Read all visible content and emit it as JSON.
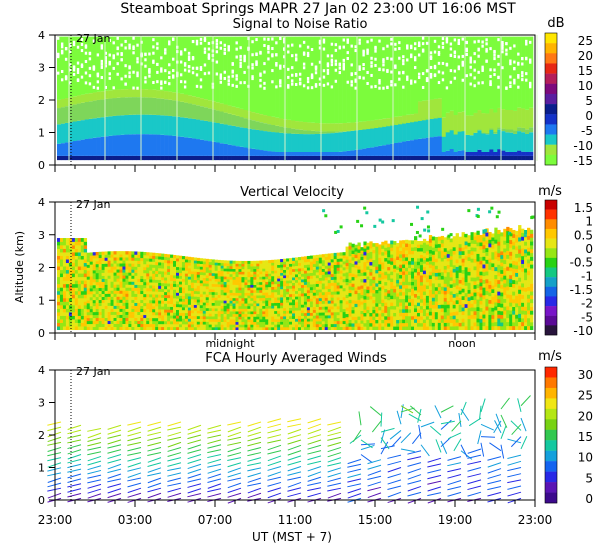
{
  "header": {
    "title": "Steamboat Springs  MAPR 27 Jan 02  23:00 UT  16:06  MST"
  },
  "colors": {
    "snr_scale": [
      "#7cfc3c",
      "#a0e63c",
      "#19c8c8",
      "#1e78f0",
      "#1432c8",
      "#0a1e8c",
      "#5a1ea0",
      "#7d0a7d",
      "#b41e5a",
      "#e62814",
      "#ff7814",
      "#ffb400",
      "#ffe600"
    ],
    "vel_scale": [
      "#28143c",
      "#5a0a96",
      "#7814c8",
      "#2828e6",
      "#1464e6",
      "#14a0c8",
      "#14c882",
      "#28d214",
      "#96e614",
      "#e6e614",
      "#ffc800",
      "#ff8c00",
      "#ff3200",
      "#c80000"
    ],
    "wind_scale": [
      "#3c0a8c",
      "#5a14b4",
      "#2828e6",
      "#1464f0",
      "#14a0dc",
      "#14c8a0",
      "#32c850",
      "#78d214",
      "#b4e614",
      "#f0e614",
      "#ffb400",
      "#ff7800",
      "#ff2800"
    ]
  },
  "chart_data": [
    {
      "type": "heatmap",
      "name": "snr",
      "title": "Signal to Noise Ratio",
      "ylabel": "",
      "ylim": [
        0,
        4
      ],
      "yticks": [
        "0",
        "1",
        "2",
        "3",
        "4"
      ],
      "date_marker": "27 Jan",
      "unit": "dB",
      "colorbar_ticks": [
        "25",
        "20",
        "15",
        "10",
        "5",
        "0",
        "-5",
        "-10",
        "-15"
      ],
      "layers": [
        {
          "from_km": 0.15,
          "to_km": 0.3,
          "color": "#0a1e8c"
        },
        {
          "from_km": 0.3,
          "to_km": 0.8,
          "color": "#1e78f0"
        },
        {
          "from_km": 0.8,
          "to_km": 1.4,
          "color": "#19c8c8"
        },
        {
          "from_km": 1.4,
          "to_km": 2.0,
          "color": "#a0e63c"
        },
        {
          "from_km": 2.0,
          "to_km": 4.0,
          "color": "#7cfc3c"
        }
      ]
    },
    {
      "type": "heatmap",
      "name": "velocity",
      "title": "Vertical Velocity",
      "ylabel": "Altitude (km)",
      "ylim": [
        0,
        4
      ],
      "yticks": [
        "0",
        "1",
        "2",
        "3",
        "4"
      ],
      "date_marker": "27 Jan",
      "unit": "m/s",
      "colorbar_ticks": [
        "1.5",
        "1",
        "0.5",
        "0",
        "-0.5",
        "-1",
        "-1.5",
        "-2",
        "-5",
        "-10"
      ],
      "time_labels": [
        "midnight",
        "noon"
      ]
    },
    {
      "type": "scatter",
      "name": "winds",
      "title": "FCA Hourly Averaged Winds",
      "ylabel": "",
      "ylim": [
        0,
        4
      ],
      "yticks": [
        "0",
        "1",
        "2",
        "3",
        "4"
      ],
      "date_marker": "27 Jan",
      "unit": "m/s",
      "colorbar_ticks": [
        "30",
        "25",
        "20",
        "15",
        "10",
        "5",
        "0"
      ],
      "hour_range": [
        23,
        47
      ],
      "top_km_by_hour": [
        2.4,
        2.3,
        2.2,
        2.3,
        2.4,
        2.4,
        2.4,
        2.3,
        2.3,
        2.4,
        2.4,
        2.5,
        2.5,
        2.5,
        2.4,
        2.3,
        2.6,
        2.9,
        2.8,
        2.7,
        2.8,
        2.9,
        2.8,
        2.9
      ]
    }
  ],
  "xaxis": {
    "tick_labels": [
      "23:00",
      "03:00",
      "07:00",
      "11:00",
      "15:00",
      "19:00",
      "23:00"
    ],
    "xlabel": "UT  (MST + 7)"
  }
}
